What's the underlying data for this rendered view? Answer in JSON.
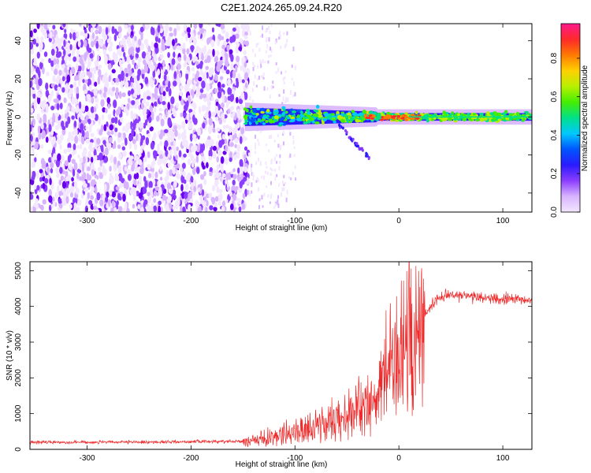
{
  "title": "C2E1.2024.265.09.24.R20",
  "colors": {
    "snr_line": "#ee2a2a",
    "axis": "#000000",
    "colormap": [
      "#f3e6ff",
      "#d8b4fe",
      "#8b3dff",
      "#2a1bff",
      "#0055ff",
      "#00c8ff",
      "#00e08a",
      "#44ee00",
      "#b8f000",
      "#ffd000",
      "#ff7a00",
      "#ff2a2a",
      "#ff1a8c"
    ]
  },
  "chart_data": [
    {
      "type": "heatmap",
      "name": "spectrogram",
      "xlabel": "Height of straight line (km)",
      "ylabel": "Frequency (Hz)",
      "xlim": [
        -355,
        128
      ],
      "ylim": [
        -50,
        49
      ],
      "xticks": [
        -300,
        -200,
        -100,
        0,
        100
      ],
      "xtick_labels": [
        "-300",
        "-200",
        "-100",
        "0",
        "100"
      ],
      "yticks": [
        -40,
        -20,
        0,
        20,
        40
      ],
      "ytick_labels": [
        "-40",
        "-20",
        "0",
        "20",
        "40"
      ],
      "noise_region_x": [
        -355,
        -145
      ],
      "signal_start_x": -148,
      "carrier_freq_hz": 0,
      "colorbar": {
        "label": "Normalized spectral amplitude",
        "range": [
          0.0,
          0.98
        ],
        "ticks": [
          0.0,
          0.2,
          0.4,
          0.6,
          0.8
        ],
        "tick_labels": [
          "0.0",
          "0.2",
          "0.4",
          "0.6",
          "0.8"
        ]
      }
    },
    {
      "type": "line",
      "name": "snr",
      "xlabel": "Height of straight line (km)",
      "ylabel": "SNR (10 * v/v)",
      "xlim": [
        -355,
        128
      ],
      "ylim": [
        0,
        5250
      ],
      "xticks": [
        -300,
        -200,
        -100,
        0,
        100
      ],
      "xtick_labels": [
        "-300",
        "-200",
        "-100",
        "0",
        "100"
      ],
      "yticks": [
        0,
        1000,
        2000,
        3000,
        4000,
        5000
      ],
      "ytick_labels": [
        "0",
        "1000",
        "2000",
        "3000",
        "4000",
        "5000"
      ],
      "profile_x": [
        -355,
        -250,
        -150,
        -130,
        -110,
        -90,
        -70,
        -50,
        -35,
        -25,
        -18,
        -12,
        -5,
        0,
        8,
        15,
        25,
        35,
        45,
        60,
        80,
        100,
        128
      ],
      "profile_y": [
        200,
        200,
        230,
        330,
        480,
        650,
        850,
        1050,
        1250,
        1500,
        1900,
        2400,
        2800,
        3050,
        3200,
        3450,
        3800,
        4150,
        4350,
        4300,
        4250,
        4200,
        4200
      ],
      "spike": {
        "x": 10,
        "y": 5250
      }
    }
  ]
}
